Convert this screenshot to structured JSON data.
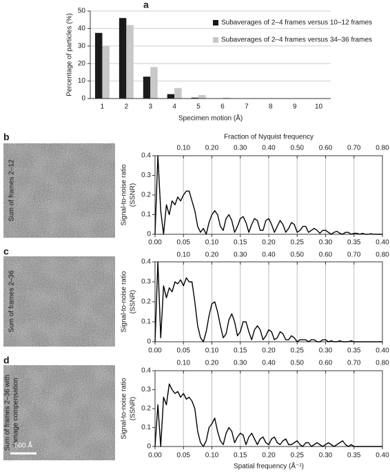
{
  "chart_data": [
    {
      "type": "bar",
      "panel": "a",
      "xlabel": "Specimen motion (Å)",
      "ylabel": "Percentage of particles (%)",
      "categories": [
        1,
        2,
        3,
        4,
        5,
        6,
        7,
        8,
        9,
        10
      ],
      "series": [
        {
          "name": "Subaverages of 2–4 frames versus 10–12 frames",
          "color": "#1a1a1a",
          "values": [
            37.5,
            46,
            12.5,
            2.5,
            0.5,
            0,
            0,
            0,
            0,
            0
          ]
        },
        {
          "name": "Subaverages of 2–4 frames versus 34–36 frames",
          "color": "#c8c8c8",
          "values": [
            30,
            42,
            18,
            6,
            2,
            0.5,
            0,
            0,
            0,
            0
          ]
        }
      ],
      "ylim": [
        0,
        50
      ],
      "yticks": [
        0,
        10,
        20,
        30,
        40,
        50
      ],
      "grid": true,
      "legend": "upper right"
    },
    {
      "type": "line",
      "panel": "b",
      "image_label": [
        "Sum of frames 2–12"
      ],
      "ylabel": [
        "Signal-to-noise ratio",
        "(SSNR)"
      ],
      "x2label": "Fraction of Nyquist frequency",
      "color": "#000000",
      "x": [
        0,
        0.005,
        0.01,
        0.015,
        0.02,
        0.025,
        0.03,
        0.035,
        0.04,
        0.045,
        0.05,
        0.055,
        0.06,
        0.065,
        0.07,
        0.075,
        0.08,
        0.085,
        0.09,
        0.095,
        0.1,
        0.105,
        0.11,
        0.115,
        0.12,
        0.125,
        0.13,
        0.135,
        0.14,
        0.145,
        0.15,
        0.155,
        0.16,
        0.165,
        0.17,
        0.175,
        0.18,
        0.185,
        0.19,
        0.195,
        0.2,
        0.205,
        0.21,
        0.215,
        0.22,
        0.225,
        0.23,
        0.235,
        0.24,
        0.245,
        0.25,
        0.255,
        0.26,
        0.265,
        0.27,
        0.275,
        0.28,
        0.285,
        0.29,
        0.295,
        0.3,
        0.305,
        0.31,
        0.315,
        0.32,
        0.325,
        0.33,
        0.335,
        0.34,
        0.345,
        0.35,
        0.355,
        0.36,
        0.365,
        0.37,
        0.375,
        0.38,
        0.385,
        0.39,
        0.395,
        0.4
      ],
      "values": [
        0,
        0.4,
        0.12,
        0,
        0.15,
        0.1,
        0.17,
        0.15,
        0.19,
        0.17,
        0.2,
        0.22,
        0.22,
        0.17,
        0.12,
        0.04,
        0.01,
        0.03,
        0,
        0.06,
        0.1,
        0.12,
        0.1,
        0.04,
        0.02,
        0.08,
        0.1,
        0.07,
        0.01,
        0.04,
        0.08,
        0.09,
        0.06,
        0.01,
        0.05,
        0.08,
        0.07,
        0.02,
        0.02,
        0.07,
        0.08,
        0.05,
        0.01,
        0.04,
        0.07,
        0.05,
        0.01,
        0.03,
        0.06,
        0.05,
        0.01,
        0.02,
        0.04,
        0.04,
        0.01,
        0.02,
        0.03,
        0.02,
        0.005,
        0.02,
        0.02,
        0.01,
        0,
        0.01,
        0.015,
        0.005,
        0,
        0.01,
        0.01,
        0,
        0.005,
        0.005,
        0,
        0.005,
        0,
        0,
        0.003,
        0,
        0,
        0,
        0
      ],
      "xlim": [
        0,
        0.4
      ],
      "xticks": [
        {
          "value": 0,
          "label": "0.00"
        },
        0.05,
        {
          "value": 0.1,
          "label": "0.10"
        },
        0.15,
        {
          "value": 0.2,
          "label": "0.20"
        },
        0.25,
        {
          "value": 0.3,
          "label": "0.30"
        },
        0.35,
        {
          "value": 0.4,
          "label": "0.40"
        }
      ],
      "ylim": [
        0,
        0.4
      ],
      "yticks": [
        0,
        0.1,
        0.2,
        0.3,
        0.4
      ],
      "x2lim": [
        0,
        0.8
      ],
      "x2ticks": [
        {
          "value": 0.1,
          "label": "0.10"
        },
        {
          "value": 0.2,
          "label": "0.20"
        },
        {
          "value": 0.3,
          "label": "0.30"
        },
        {
          "value": 0.4,
          "label": "0.40"
        },
        {
          "value": 0.5,
          "label": "0.50"
        },
        {
          "value": 0.6,
          "label": "0.60"
        },
        {
          "value": 0.7,
          "label": "0.70"
        },
        {
          "value": 0.8,
          "label": "0.80"
        }
      ],
      "grid": true
    },
    {
      "type": "line",
      "panel": "c",
      "image_label": [
        "Sum of frames 2–36"
      ],
      "ylabel": [
        "Signal-to-noise ratio",
        "(SSNR)"
      ],
      "color": "#000000",
      "x": [
        0,
        0.005,
        0.01,
        0.015,
        0.02,
        0.025,
        0.03,
        0.035,
        0.04,
        0.045,
        0.05,
        0.055,
        0.06,
        0.065,
        0.07,
        0.075,
        0.08,
        0.085,
        0.09,
        0.095,
        0.1,
        0.105,
        0.11,
        0.115,
        0.12,
        0.125,
        0.13,
        0.135,
        0.14,
        0.145,
        0.15,
        0.155,
        0.16,
        0.165,
        0.17,
        0.175,
        0.18,
        0.185,
        0.19,
        0.195,
        0.2,
        0.205,
        0.21,
        0.215,
        0.22,
        0.225,
        0.23,
        0.235,
        0.24,
        0.245,
        0.25,
        0.255,
        0.26,
        0.265,
        0.27,
        0.275,
        0.28,
        0.285,
        0.29,
        0.295,
        0.3,
        0.305,
        0.31,
        0.315,
        0.32,
        0.325,
        0.33,
        0.335,
        0.34,
        0.345,
        0.35,
        0.355,
        0.36,
        0.365,
        0.37,
        0.375,
        0.38,
        0.385,
        0.39,
        0.395,
        0.4
      ],
      "values": [
        0,
        0.4,
        0.02,
        0.28,
        0.22,
        0.27,
        0.25,
        0.3,
        0.29,
        0.31,
        0.28,
        0.32,
        0.3,
        0.3,
        0.2,
        0.08,
        0.02,
        0,
        0.05,
        0.13,
        0.19,
        0.2,
        0.15,
        0.08,
        0.02,
        0.04,
        0.11,
        0.14,
        0.1,
        0.03,
        0.05,
        0.1,
        0.1,
        0.05,
        0.01,
        0.06,
        0.08,
        0.06,
        0.01,
        0.03,
        0.06,
        0.05,
        0.01,
        0.02,
        0.05,
        0.04,
        0.01,
        0.01,
        0.03,
        0.02,
        0,
        0.01,
        0.01,
        0.01,
        0,
        0.01,
        0.01,
        0,
        0,
        0.01,
        0.01,
        0,
        0.005,
        0,
        0,
        0.005,
        0,
        0,
        0,
        0.005,
        0,
        0,
        0,
        0,
        0,
        0,
        0,
        0,
        0,
        0,
        0
      ],
      "xlim": [
        0,
        0.4
      ],
      "xticks": [
        {
          "value": 0,
          "label": "0.00"
        },
        0.05,
        {
          "value": 0.1,
          "label": "0.10"
        },
        0.15,
        {
          "value": 0.2,
          "label": "0.20"
        },
        0.25,
        {
          "value": 0.3,
          "label": "0.30"
        },
        0.35,
        {
          "value": 0.4,
          "label": "0.40"
        }
      ],
      "ylim": [
        0,
        0.4
      ],
      "yticks": [
        0,
        0.1,
        0.2,
        0.3,
        0.4
      ],
      "x2lim": [
        0,
        0.8
      ],
      "x2ticks": [
        {
          "value": 0.1,
          "label": "0.10"
        },
        {
          "value": 0.2,
          "label": "0.20"
        },
        {
          "value": 0.3,
          "label": "0.30"
        },
        {
          "value": 0.4,
          "label": "0.40"
        },
        {
          "value": 0.5,
          "label": "0.50"
        },
        {
          "value": 0.6,
          "label": "0.60"
        },
        {
          "value": 0.7,
          "label": "0.70"
        },
        {
          "value": 0.8,
          "label": "0.80"
        }
      ],
      "grid": true
    },
    {
      "type": "line",
      "panel": "d",
      "image_label": [
        "Sum of frames 2–36 with",
        "damage compensation"
      ],
      "scale_bar_label": "500 Å",
      "ylabel": [
        "Signal-to-noise ratio",
        "(SSNR)"
      ],
      "xlabel": "Spatial frequency (Å⁻¹)",
      "color": "#000000",
      "x": [
        0,
        0.005,
        0.01,
        0.015,
        0.02,
        0.025,
        0.03,
        0.035,
        0.04,
        0.045,
        0.05,
        0.055,
        0.06,
        0.065,
        0.07,
        0.075,
        0.08,
        0.085,
        0.09,
        0.095,
        0.1,
        0.105,
        0.11,
        0.115,
        0.12,
        0.125,
        0.13,
        0.135,
        0.14,
        0.145,
        0.15,
        0.155,
        0.16,
        0.165,
        0.17,
        0.175,
        0.18,
        0.185,
        0.19,
        0.195,
        0.2,
        0.205,
        0.21,
        0.215,
        0.22,
        0.225,
        0.23,
        0.235,
        0.24,
        0.245,
        0.25,
        0.255,
        0.26,
        0.265,
        0.27,
        0.275,
        0.28,
        0.285,
        0.29,
        0.295,
        0.3,
        0.305,
        0.31,
        0.315,
        0.32,
        0.325,
        0.33,
        0.335,
        0.34,
        0.345,
        0.35,
        0.355,
        0.36,
        0.365,
        0.37,
        0.375,
        0.38,
        0.385,
        0.39,
        0.395,
        0.4
      ],
      "values": [
        0,
        0.22,
        0,
        0.26,
        0.22,
        0.33,
        0.3,
        0.28,
        0.29,
        0.26,
        0.28,
        0.25,
        0.26,
        0.24,
        0.2,
        0.08,
        0.02,
        0,
        0.03,
        0.1,
        0.12,
        0.15,
        0.08,
        0.03,
        0.01,
        0.07,
        0.1,
        0.08,
        0.02,
        0.05,
        0.07,
        0.06,
        0.01,
        0.05,
        0.07,
        0.04,
        0.01,
        0.04,
        0.05,
        0.02,
        0.01,
        0.04,
        0.05,
        0.02,
        0.01,
        0.03,
        0.04,
        0.01,
        0.01,
        0.02,
        0.03,
        0.01,
        0,
        0.02,
        0.02,
        0,
        0.01,
        0.02,
        0.01,
        0,
        0.01,
        0.02,
        0.01,
        0,
        0.01,
        0.02,
        0.03,
        0.01,
        0,
        0.01,
        0,
        0,
        0,
        0,
        0,
        0,
        0,
        0,
        0,
        0,
        0
      ],
      "xlim": [
        0,
        0.4
      ],
      "xticks": [
        {
          "value": 0,
          "label": "0.00"
        },
        0.05,
        {
          "value": 0.1,
          "label": "0.10"
        },
        0.15,
        {
          "value": 0.2,
          "label": "0.20"
        },
        0.25,
        {
          "value": 0.3,
          "label": "0.30"
        },
        0.35,
        {
          "value": 0.4,
          "label": "0.40"
        }
      ],
      "ylim": [
        0,
        0.4
      ],
      "yticks": [
        0,
        0.1,
        0.2,
        0.3,
        0.4
      ],
      "x2lim": [
        0,
        0.8
      ],
      "x2ticks": [
        {
          "value": 0.1,
          "label": "0.10"
        },
        {
          "value": 0.2,
          "label": "0.20"
        },
        {
          "value": 0.3,
          "label": "0.30"
        },
        {
          "value": 0.4,
          "label": "0.40"
        },
        {
          "value": 0.5,
          "label": "0.50"
        },
        {
          "value": 0.6,
          "label": "0.60"
        },
        {
          "value": 0.7,
          "label": "0.70"
        },
        {
          "value": 0.8,
          "label": "0.80"
        }
      ],
      "grid": true
    }
  ]
}
